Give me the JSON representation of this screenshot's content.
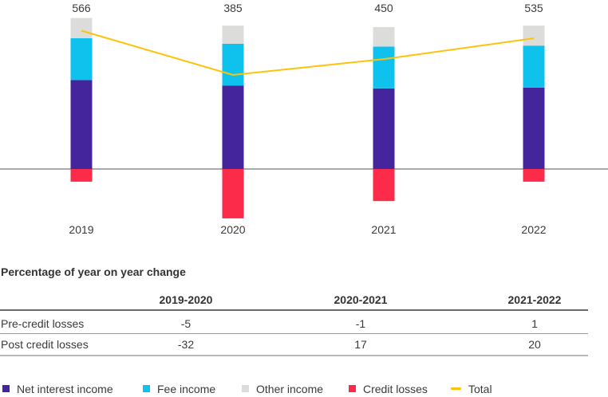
{
  "page": {
    "background": "#ffffff"
  },
  "chart_data": {
    "type": "bar",
    "variant": "stacked-bars-with-total-line",
    "categories": [
      "2019",
      "2020",
      "2021",
      "2022"
    ],
    "series": [
      {
        "name": "Net interest income",
        "role": "bar",
        "color": "#45259c",
        "values": [
          364,
          341,
          330,
          333
        ]
      },
      {
        "name": "Fee income",
        "role": "bar",
        "color": "#0fc2ee",
        "values": [
          171,
          172,
          171,
          172
        ]
      },
      {
        "name": "Other income",
        "role": "bar",
        "color": "#dcdcdb",
        "values": [
          83,
          74,
          80,
          82
        ]
      },
      {
        "name": "Credit losses",
        "role": "bar",
        "color": "#fb2b49",
        "values": [
          -52,
          -202,
          -131,
          -52
        ]
      },
      {
        "name": "Total",
        "role": "line",
        "color": "#fdc30b",
        "values": [
          566,
          385,
          450,
          535
        ]
      }
    ],
    "bar_total_labels": [
      "566",
      "385",
      "450",
      "535"
    ],
    "ylim": [
      -210,
      692
    ],
    "grid": false,
    "baseline_color": "#55565a",
    "legend_position": "bottom"
  },
  "yoy_table": {
    "heading": "Percentage of year on year change",
    "columns": [
      "2019-2020",
      "2020-2021",
      "2021-2022"
    ],
    "rows": [
      {
        "label": "Pre-credit losses",
        "values": [
          "-5",
          "-1",
          "1"
        ]
      },
      {
        "label": "Post credit losses",
        "values": [
          "-32",
          "17",
          "20"
        ]
      }
    ]
  },
  "legend": {
    "items": [
      {
        "label": "Net interest income",
        "marker": "square",
        "color": "#45259c"
      },
      {
        "label": "Fee income",
        "marker": "square",
        "color": "#0fc2ee"
      },
      {
        "label": "Other income",
        "marker": "square",
        "color": "#dcdcdb"
      },
      {
        "label": "Credit losses",
        "marker": "square",
        "color": "#fb2b49"
      },
      {
        "label": "Total",
        "marker": "line",
        "color": "#fdc30b"
      }
    ]
  }
}
